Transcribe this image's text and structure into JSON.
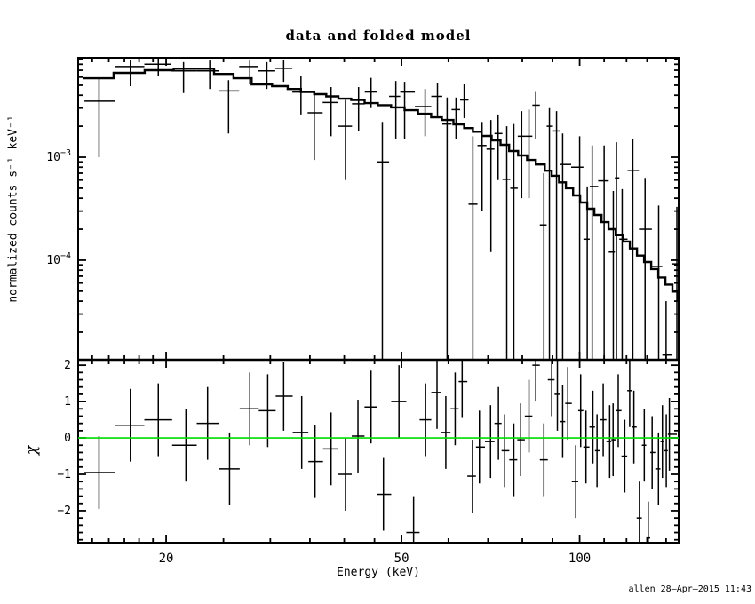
{
  "signature": "allen 28–Apr–2015 11:43",
  "chart_data": {
    "type": "line",
    "title": "data and folded model",
    "xlabel": "Energy (keV)",
    "ylabel_top": "normalized counts s⁻¹ keV⁻¹",
    "ylabel_bottom": "χ",
    "x_scale": "log",
    "xlim": [
      14.2,
      147
    ],
    "xticks": [
      [
        20,
        "20"
      ],
      [
        50,
        "50"
      ],
      [
        100,
        "100"
      ]
    ],
    "xminor": [
      15,
      16,
      17,
      18,
      19,
      25,
      30,
      35,
      40,
      45,
      60,
      70,
      80,
      90,
      110,
      120,
      130,
      140
    ],
    "legend": "none",
    "grid": false,
    "top": {
      "y_scale": "log",
      "ylim": [
        1.08e-05,
        0.00925
      ],
      "yticks": [
        {
          "v": 0.001,
          "base": "10",
          "exp": "−3"
        },
        {
          "v": 0.0001,
          "base": "10",
          "exp": "−4"
        }
      ],
      "model_edges": [
        14.5,
        16.3,
        18.4,
        20.6,
        24.1,
        26.0,
        27.9,
        30.2,
        32.1,
        33.8,
        35.6,
        37.3,
        39.1,
        41.1,
        43.3,
        45.6,
        48.0,
        50.6,
        53.3,
        56.1,
        58.5,
        61.2,
        63.8,
        66.0,
        68.3,
        71.0,
        73.5,
        76.0,
        78.7,
        81.5,
        84.3,
        87.3,
        89.7,
        92.3,
        94.8,
        97.5,
        100.2,
        103.0,
        105.9,
        108.9,
        111.9,
        115.1,
        118.3,
        121.6,
        125.0,
        128.5,
        132.1,
        135.8,
        139.6,
        143.5,
        146.5,
        147.0
      ],
      "model_values": [
        0.00585,
        0.0066,
        0.007,
        0.00725,
        0.00645,
        0.00585,
        0.0051,
        0.0049,
        0.0046,
        0.0043,
        0.0041,
        0.0039,
        0.0037,
        0.0036,
        0.00335,
        0.0032,
        0.00305,
        0.00286,
        0.00264,
        0.00244,
        0.0023,
        0.00208,
        0.00192,
        0.00177,
        0.00161,
        0.00146,
        0.00132,
        0.00115,
        0.00104,
        0.00094,
        0.00085,
        0.00074,
        0.00066,
        0.00057,
        0.0005,
        0.000426,
        0.000363,
        0.000316,
        0.000275,
        0.000234,
        0.0002,
        0.000175,
        0.000152,
        0.00013,
        0.000111,
        9.6e-05,
        8.2e-05,
        6.8e-05,
        5.8e-05,
        4.95e-05,
        4.1e-05
      ],
      "points": [
        [
          15.4,
          0.0035,
          0.001,
          0.0059
        ],
        [
          17.4,
          0.0076,
          0.0049,
          0.0087
        ],
        [
          19.4,
          0.008,
          0.0062,
          0.0092
        ],
        [
          21.4,
          0.0069,
          0.0042,
          0.0084
        ],
        [
          23.7,
          0.0069,
          0.0046,
          0.0087
        ],
        [
          25.5,
          0.0044,
          0.0017,
          0.0056
        ],
        [
          27.7,
          0.0076,
          0.0051,
          0.0087
        ],
        [
          29.6,
          0.0069,
          0.0046,
          0.0084
        ],
        [
          31.6,
          0.0073,
          0.0054,
          0.0089
        ],
        [
          33.8,
          0.0043,
          0.0026,
          0.0062
        ],
        [
          35.6,
          0.0027,
          0.00094,
          0.0042
        ],
        [
          38.0,
          0.0034,
          0.0016,
          0.0048
        ],
        [
          40.2,
          0.002,
          0.0006,
          0.0036
        ],
        [
          42.3,
          0.0033,
          0.0018,
          0.0048
        ],
        [
          44.4,
          0.0043,
          0.003,
          0.0059
        ],
        [
          46.4,
          0.0009,
          1.1e-05,
          0.0022
        ],
        [
          48.9,
          0.0039,
          0.0015,
          0.0055
        ],
        [
          50.6,
          0.0043,
          0.0015,
          0.0054
        ],
        [
          54.8,
          0.0031,
          0.0016,
          0.0046
        ],
        [
          57.5,
          0.0039,
          0.0025,
          0.0053
        ],
        [
          59.7,
          0.0021,
          1.1e-05,
          0.0038
        ],
        [
          61.8,
          0.0029,
          0.0015,
          0.0038
        ],
        [
          63.8,
          0.0036,
          0.0024,
          0.0051
        ],
        [
          66.0,
          0.00035,
          1.1e-05,
          0.0016
        ],
        [
          68.4,
          0.0013,
          0.0003,
          0.0022
        ],
        [
          70.8,
          0.0012,
          0.00012,
          0.0023
        ],
        [
          72.8,
          0.0017,
          0.0006,
          0.0026
        ],
        [
          75.3,
          0.00061,
          1.1e-05,
          0.002
        ],
        [
          77.4,
          0.0005,
          1.1e-05,
          0.0021
        ],
        [
          79.8,
          0.0016,
          0.0004,
          0.0028
        ],
        [
          82.1,
          0.0016,
          0.0004,
          0.0029
        ],
        [
          84.3,
          0.0032,
          0.0015,
          0.0043
        ],
        [
          87.0,
          0.00022,
          1.1e-05,
          0.0007
        ],
        [
          88.9,
          0.002,
          1.1e-05,
          0.003
        ],
        [
          91.4,
          0.0018,
          1.1e-05,
          0.0028
        ],
        [
          93.6,
          0.00085,
          1.1e-05,
          0.0017
        ],
        [
          100.0,
          0.0008,
          1.1e-05,
          0.0016
        ],
        [
          103.0,
          0.00016,
          1.1e-05,
          0.00052
        ],
        [
          105.0,
          0.00052,
          1.1e-05,
          0.0013
        ],
        [
          110.0,
          0.00059,
          1.1e-05,
          0.0013
        ],
        [
          114.0,
          0.00012,
          1.1e-05,
          0.00047
        ],
        [
          115.4,
          0.00063,
          1.1e-05,
          0.0014
        ],
        [
          118.0,
          0.00016,
          1.1e-05,
          0.00049
        ],
        [
          123.0,
          0.00074,
          1.1e-05,
          0.0015
        ],
        [
          129.0,
          0.0002,
          1.1e-05,
          0.00063
        ],
        [
          136.0,
          8.7e-05,
          1.1e-05,
          0.00034
        ],
        [
          140.0,
          1.2e-05,
          1.1e-05,
          4e-05
        ],
        [
          146.0,
          9.2e-05,
          1.1e-05,
          0.00033
        ]
      ]
    },
    "bottom": {
      "y_scale": "linear",
      "ylim": [
        -2.88,
        2.15
      ],
      "yticks": [
        [
          2,
          "2"
        ],
        [
          1,
          "1"
        ],
        [
          0,
          "0"
        ],
        [
          -1,
          "−1"
        ],
        [
          -2,
          "−2"
        ]
      ],
      "minor_step": 0.2,
      "zero_line_color": "#00dd00",
      "points": [
        [
          15.4,
          -0.95,
          -1.95,
          0.05
        ],
        [
          17.4,
          0.35,
          -0.65,
          1.35
        ],
        [
          19.4,
          0.5,
          -0.5,
          1.5
        ],
        [
          21.6,
          -0.2,
          -1.2,
          0.8
        ],
        [
          23.5,
          0.4,
          -0.6,
          1.4
        ],
        [
          25.6,
          -0.85,
          -1.85,
          0.15
        ],
        [
          27.7,
          0.8,
          -0.2,
          1.8
        ],
        [
          29.7,
          0.75,
          -0.25,
          1.75
        ],
        [
          31.6,
          1.15,
          0.2,
          2.1
        ],
        [
          33.9,
          0.15,
          -0.85,
          1.15
        ],
        [
          35.7,
          -0.65,
          -1.65,
          0.35
        ],
        [
          38.0,
          -0.3,
          -1.3,
          0.7
        ],
        [
          40.2,
          -1.0,
          -2.0,
          0.0
        ],
        [
          42.2,
          0.05,
          -0.95,
          1.05
        ],
        [
          44.4,
          0.85,
          -0.15,
          1.85
        ],
        [
          46.6,
          -1.55,
          -2.55,
          -0.55
        ],
        [
          49.5,
          1.0,
          0.0,
          2.0
        ],
        [
          52.4,
          -2.6,
          -2.88,
          -1.6
        ],
        [
          54.9,
          0.5,
          -0.5,
          1.5
        ],
        [
          57.4,
          1.25,
          0.25,
          2.15
        ],
        [
          59.4,
          0.15,
          -0.85,
          1.15
        ],
        [
          61.6,
          0.8,
          -0.2,
          1.8
        ],
        [
          63.3,
          1.55,
          0.55,
          2.15
        ],
        [
          65.9,
          -1.05,
          -2.05,
          -0.05
        ],
        [
          67.7,
          -0.25,
          -1.25,
          0.75
        ],
        [
          70.7,
          -0.1,
          -1.1,
          0.9
        ],
        [
          72.9,
          0.4,
          -0.6,
          1.4
        ],
        [
          74.7,
          -0.35,
          -1.35,
          0.65
        ],
        [
          77.4,
          -0.6,
          -1.6,
          0.4
        ],
        [
          79.5,
          -0.05,
          -1.05,
          0.95
        ],
        [
          82.1,
          0.6,
          -0.4,
          1.6
        ],
        [
          84.3,
          2.0,
          1.0,
          2.15
        ],
        [
          87.0,
          -0.6,
          -1.6,
          0.4
        ],
        [
          89.7,
          1.6,
          0.6,
          2.15
        ],
        [
          91.7,
          1.2,
          0.2,
          2.15
        ],
        [
          93.6,
          0.45,
          -0.55,
          1.45
        ],
        [
          95.5,
          0.95,
          -0.05,
          1.95
        ],
        [
          98.5,
          -1.2,
          -2.2,
          -0.2
        ],
        [
          100.4,
          0.75,
          -0.25,
          1.75
        ],
        [
          102.5,
          -0.25,
          -1.25,
          0.75
        ],
        [
          105.3,
          0.3,
          -0.7,
          1.3
        ],
        [
          107.0,
          -0.35,
          -1.35,
          0.65
        ],
        [
          109.6,
          0.5,
          -0.5,
          1.5
        ],
        [
          112.4,
          -0.1,
          -1.1,
          0.9
        ],
        [
          113.9,
          -0.05,
          -1.05,
          0.95
        ],
        [
          116.2,
          0.75,
          -0.25,
          1.75
        ],
        [
          119.2,
          -0.5,
          -1.5,
          0.5
        ],
        [
          121.5,
          1.3,
          0.3,
          2.15
        ],
        [
          123.5,
          0.3,
          -0.7,
          1.3
        ],
        [
          126.2,
          -2.2,
          -2.88,
          -1.2
        ],
        [
          128.6,
          -0.2,
          -1.2,
          0.8
        ],
        [
          130.6,
          -2.75,
          -2.88,
          -1.75
        ],
        [
          132.6,
          -0.4,
          -1.4,
          0.6
        ],
        [
          135.9,
          -0.85,
          -1.85,
          0.15
        ],
        [
          138.0,
          -0.1,
          -1.1,
          0.9
        ],
        [
          140.1,
          -0.35,
          -1.35,
          0.65
        ],
        [
          141.8,
          0.1,
          -0.9,
          1.1
        ]
      ]
    }
  }
}
